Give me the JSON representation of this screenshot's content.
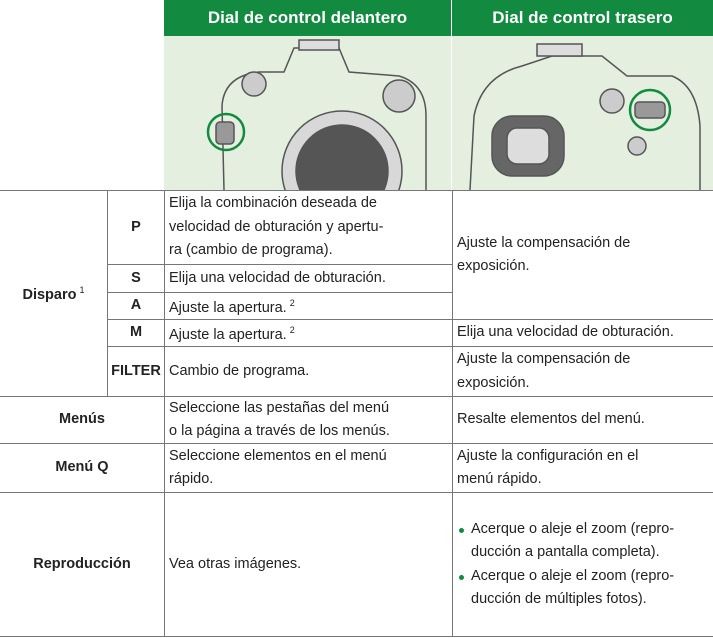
{
  "table": {
    "headers": [
      "Dial de control delantero",
      "Dial de control trasero"
    ],
    "group": {
      "label": "Disparo",
      "note": "1"
    },
    "modes": [
      {
        "mode": "P",
        "front": [
          "Elija la combinación deseada de",
          "velocidad de obturación y apertu-",
          "ra (cambio de programa)."
        ]
      },
      {
        "mode": "S",
        "front": [
          "Elija una velocidad de obturación."
        ]
      },
      {
        "mode": "A",
        "front": [
          "Ajuste la apertura."
        ],
        "note": "2"
      },
      {
        "mode": "M",
        "front": [
          "Ajuste la apertura."
        ],
        "note": "2",
        "rear": [
          "Elija una velocidad de obturación."
        ]
      },
      {
        "mode": "FILTER",
        "front": [
          "Cambio de programa."
        ],
        "rear": [
          "Ajuste la compensación de",
          "exposición."
        ]
      }
    ],
    "shared_rear": [
      "Ajuste la compensación de",
      "exposición."
    ],
    "rows": [
      {
        "label": "Menús",
        "front": [
          "Seleccione las pestañas del menú",
          "o la página a través de los menús."
        ],
        "rear": [
          "Resalte elementos del menú."
        ]
      },
      {
        "label": "Menú Q",
        "front": [
          "Seleccione elementos en el menú",
          "rápido."
        ],
        "rear": [
          "Ajuste la configuración en el",
          "menú rápido."
        ]
      },
      {
        "label": "Reproducción",
        "front": [
          "Vea otras imágenes."
        ],
        "rear_bullets": [
          [
            "Acerque o aleje el zoom (repro-",
            "ducción a pantalla completa)."
          ],
          [
            "Acerque o aleje el zoom (repro-",
            "ducción de múltiples fotos)."
          ]
        ]
      }
    ]
  }
}
